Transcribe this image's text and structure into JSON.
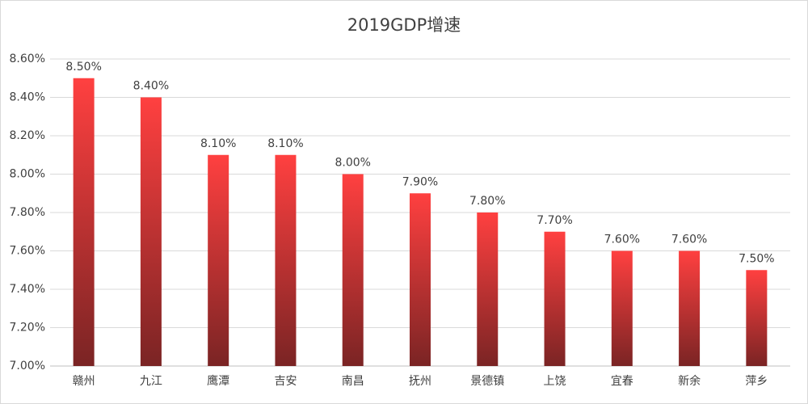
{
  "chart_data": {
    "type": "bar",
    "title": "2019GDP增速",
    "categories": [
      "赣州",
      "九江",
      "鹰潭",
      "吉安",
      "南昌",
      "抚州",
      "景德镇",
      "上饶",
      "宜春",
      "新余",
      "萍乡"
    ],
    "values": [
      8.5,
      8.4,
      8.1,
      8.1,
      8.0,
      7.9,
      7.8,
      7.7,
      7.6,
      7.6,
      7.5
    ],
    "value_labels": [
      "8.50%",
      "8.40%",
      "8.10%",
      "8.10%",
      "8.00%",
      "7.90%",
      "7.80%",
      "7.70%",
      "7.60%",
      "7.60%",
      "7.50%"
    ],
    "color": "#ff4040",
    "ylim": [
      7.0,
      8.6
    ],
    "yticks": [
      {
        "value": 7.0,
        "label": "7.00%"
      },
      {
        "value": 7.2,
        "label": "7.20%"
      },
      {
        "value": 7.4,
        "label": "7.40%"
      },
      {
        "value": 7.6,
        "label": "7.60%"
      },
      {
        "value": 7.8,
        "label": "7.80%"
      },
      {
        "value": 8.0,
        "label": "8.00%"
      },
      {
        "value": 8.2,
        "label": "8.20%"
      },
      {
        "value": 8.4,
        "label": "8.40%"
      },
      {
        "value": 8.6,
        "label": "8.60%"
      }
    ],
    "grid": true
  }
}
